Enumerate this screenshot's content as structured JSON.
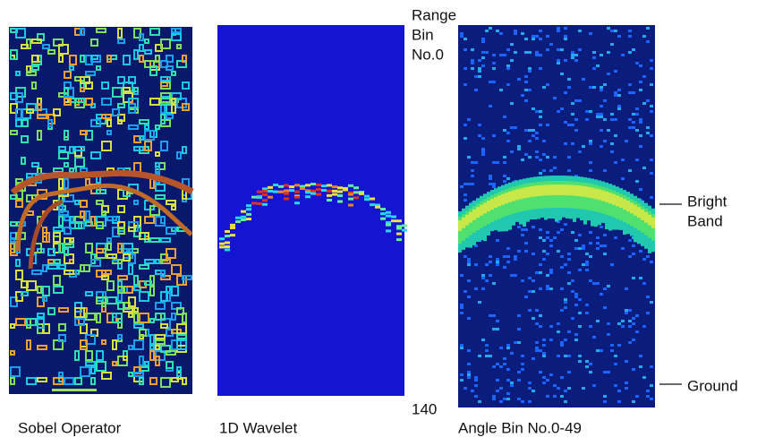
{
  "axis_label": {
    "top": [
      "Range",
      "Bin",
      "No.0"
    ],
    "bottom": "140"
  },
  "panels": [
    {
      "caption": "Sobel Operator"
    },
    {
      "caption": "1D Wavelet"
    },
    {
      "caption": "Angle Bin No.0-49"
    }
  ],
  "annotations": [
    {
      "label": [
        "Bright",
        "Band"
      ]
    },
    {
      "label": [
        "Ground"
      ]
    }
  ]
}
